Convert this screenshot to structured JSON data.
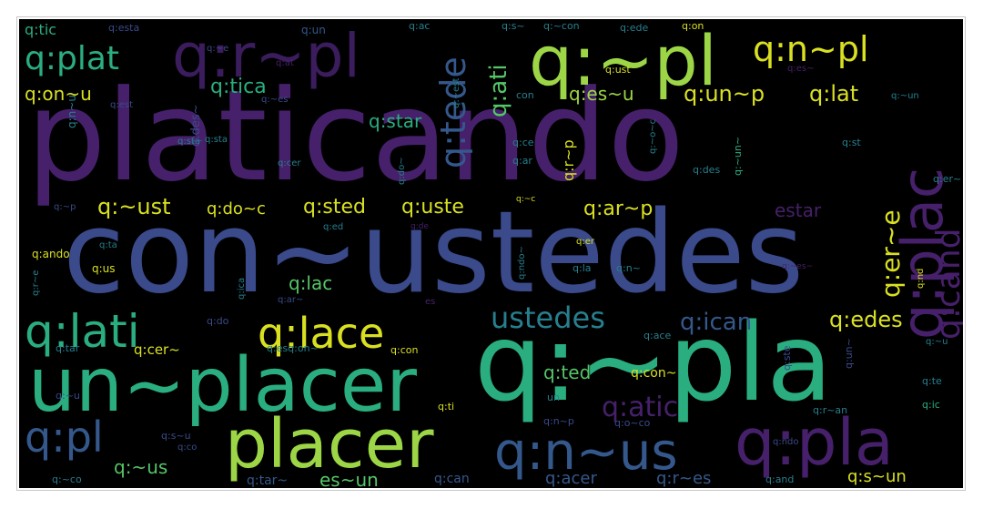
{
  "colors": {
    "background": "#000000",
    "frame_border": "#c8c8c8",
    "palette": {
      "purple": "#46206a",
      "dark_purple": "#3b1d5e",
      "indigo": "#3a4a8a",
      "blue": "#34588c",
      "teal": "#277f8e",
      "green": "#2aae80",
      "light_green": "#55c667",
      "yellow_green": "#9cd646",
      "yellow": "#d9e021"
    }
  },
  "wordcloud": {
    "big": {
      "platicando": "platicando",
      "con_ustedes": "con~ustedes",
      "q_pla_big": "q:~pla",
      "un_placer": "un~placer",
      "placer": "placer",
      "q_pl_top": "q:~pl",
      "q_r_pl": "q:r~pl",
      "q_n_us": "q:n~us",
      "q_pla": "q:pla",
      "q_plac": "q:plac"
    },
    "medium": {
      "q_lati": "q:lati",
      "q_lace": "q:lace",
      "ustedes": "ustedes",
      "q_plat": "q:plat",
      "q_n_pl": "q:n~pl",
      "q_pl": "q:pl",
      "q_tede": "q:tede",
      "q_cand": "q:cand",
      "q_ati": "q:ati",
      "q_atic": "q:atic",
      "q_ican": "q:ican",
      "q_edes": "q:edes",
      "q_er_e": "q:er~e",
      "q_lat": "q:lat",
      "q_un_p": "q:un~p",
      "q_ust": "q:~ust",
      "q_sted": "q:sted",
      "q_uste": "q:uste",
      "q_ar_p": "q:ar~p",
      "q_tica": "q:tica",
      "q_on_u": "q:on~u",
      "q_es_u": "q:es~u",
      "q_star": "q:star",
      "q_tic": "q:tic",
      "q_do_c": "q:do~c",
      "estar": "estar",
      "q_lac": "q:lac",
      "q_ted": "q:ted",
      "q_us_low": "q:~us",
      "es_un": "es~un",
      "q_s_un": "q:s~un",
      "q_acer": "q:acer",
      "q_r_es": "q:r~es",
      "q_cer": "q:cer~",
      "q_con": "q:con~",
      "q_tar": "q:tar~",
      "q_can": "q:can",
      "q_r_p": "q:r~p"
    },
    "small": [
      "q:esta",
      "q:un",
      "q:ac",
      "q:s~",
      "q:~con",
      "q:ede",
      "q:on",
      "q:~e",
      "q:at",
      "q:es~",
      "q:ust",
      "q:~est",
      "q:~es",
      "q:est",
      "q:n~u",
      "q:des~",
      "q:sta",
      "q:ce",
      "q:ar",
      "q:~o~c",
      "q:~un~",
      "q:des",
      "q:st",
      "q:cer",
      "q:do~",
      "q:~un",
      "q:~p",
      "q:~c",
      "q:er~",
      "q:ed",
      "q:ta",
      "q:de",
      "q:er",
      "q:r~e",
      "q:ando",
      "q:us",
      "q:ndo~",
      "q:la",
      "q:n~",
      "q:~es~",
      "q:nd",
      "q:ica",
      "q:ar~",
      "es",
      "q:do",
      "q:ace",
      "q:tar",
      "q:esq:on~",
      "q:con",
      "q:~u",
      "q:ti",
      "un",
      "q:ste",
      "q:un~",
      "q:te",
      "q:ic",
      "q:r~an",
      "q:n~p",
      "q:o~co",
      "q:s~u",
      "q:co",
      "q:ndo",
      "q:~co",
      "q:and",
      "q:sta",
      "con",
      "q:~u"
    ]
  }
}
